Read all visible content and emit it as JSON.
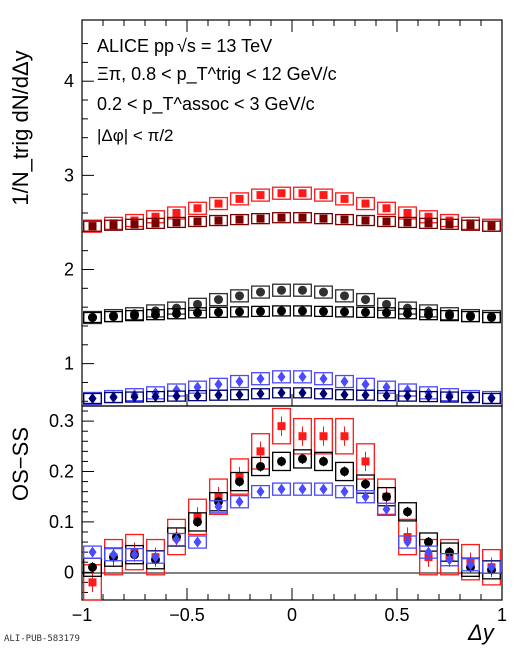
{
  "chart_data": [
    {
      "type": "scatter",
      "panel": "upper",
      "ylabel": "1/N_trig dN/dΔy",
      "ylim": [
        0.55,
        4.65
      ],
      "yticks": [
        1,
        2,
        3,
        4
      ],
      "annotations": {
        "line1_a": "ALICE pp",
        "line1_b": "√s = 13 TeV",
        "line2": "Ξπ, 0.8 < p_T^trig < 12 GeV/c",
        "line3": "0.2 < p_T^assoc < 3 GeV/c",
        "line4": "|Δφ| < π/2"
      },
      "x": [
        -0.95,
        -0.85,
        -0.75,
        -0.65,
        -0.55,
        -0.45,
        -0.35,
        -0.25,
        -0.15,
        -0.05,
        0.05,
        0.15,
        0.25,
        0.35,
        0.45,
        0.55,
        0.65,
        0.75,
        0.85,
        0.95
      ],
      "series": [
        {
          "color": "#ff1a1a",
          "marker": "square",
          "values": [
            2.46,
            2.49,
            2.52,
            2.56,
            2.6,
            2.65,
            2.7,
            2.75,
            2.79,
            2.81,
            2.81,
            2.79,
            2.75,
            2.7,
            2.65,
            2.6,
            2.56,
            2.52,
            2.49,
            2.47
          ]
        },
        {
          "color": "#7a0000",
          "marker": "square",
          "values": [
            2.46,
            2.47,
            2.48,
            2.49,
            2.5,
            2.51,
            2.52,
            2.53,
            2.54,
            2.55,
            2.55,
            2.54,
            2.53,
            2.52,
            2.51,
            2.5,
            2.49,
            2.48,
            2.47,
            2.46
          ]
        },
        {
          "color": "#303030",
          "marker": "circle",
          "values": [
            1.49,
            1.51,
            1.53,
            1.56,
            1.59,
            1.63,
            1.68,
            1.72,
            1.76,
            1.78,
            1.78,
            1.76,
            1.72,
            1.68,
            1.63,
            1.59,
            1.56,
            1.53,
            1.51,
            1.5
          ]
        },
        {
          "color": "#000000",
          "marker": "circle",
          "values": [
            1.49,
            1.5,
            1.51,
            1.52,
            1.53,
            1.54,
            1.545,
            1.55,
            1.555,
            1.56,
            1.56,
            1.555,
            1.55,
            1.545,
            1.54,
            1.53,
            1.52,
            1.51,
            1.5,
            1.49
          ]
        },
        {
          "color": "#4a4aff",
          "marker": "diamond",
          "values": [
            0.63,
            0.65,
            0.67,
            0.69,
            0.72,
            0.75,
            0.78,
            0.81,
            0.84,
            0.86,
            0.86,
            0.84,
            0.81,
            0.78,
            0.75,
            0.72,
            0.69,
            0.67,
            0.65,
            0.64
          ]
        },
        {
          "color": "#000070",
          "marker": "diamond",
          "values": [
            0.63,
            0.64,
            0.645,
            0.65,
            0.655,
            0.66,
            0.665,
            0.67,
            0.68,
            0.69,
            0.69,
            0.68,
            0.67,
            0.665,
            0.66,
            0.655,
            0.65,
            0.645,
            0.64,
            0.63
          ]
        }
      ]
    },
    {
      "type": "scatter",
      "panel": "lower",
      "ylabel": "OS−SS",
      "xlabel": "Δy",
      "xlim": [
        -1,
        1
      ],
      "ylim": [
        -0.055,
        0.33
      ],
      "xticks": [
        "−1",
        "−0.5",
        "0",
        "0.5",
        "1"
      ],
      "yticks": [
        "0",
        "0.1",
        "0.2",
        "0.3"
      ],
      "x": [
        -0.95,
        -0.85,
        -0.75,
        -0.65,
        -0.55,
        -0.45,
        -0.35,
        -0.25,
        -0.15,
        -0.05,
        0.05,
        0.15,
        0.25,
        0.35,
        0.45,
        0.55,
        0.65,
        0.75,
        0.85,
        0.95
      ],
      "series": [
        {
          "color": "#ff1a1a",
          "marker": "square",
          "values": [
            -0.02,
            0.03,
            0.04,
            0.03,
            0.07,
            0.11,
            0.15,
            0.19,
            0.24,
            0.29,
            0.27,
            0.27,
            0.27,
            0.22,
            0.15,
            0.07,
            0.03,
            0.03,
            0.02,
            0.01
          ]
        },
        {
          "color": "#000000",
          "marker": "circle",
          "values": [
            0.01,
            0.03,
            0.035,
            0.025,
            0.07,
            0.1,
            0.14,
            0.18,
            0.21,
            0.22,
            0.225,
            0.22,
            0.2,
            0.175,
            0.15,
            0.12,
            0.06,
            0.04,
            0.01,
            0.005
          ]
        },
        {
          "color": "#4a4aff",
          "marker": "diamond",
          "values": [
            0.04,
            0.035,
            0.035,
            0.03,
            0.065,
            0.06,
            0.13,
            0.14,
            0.16,
            0.165,
            0.165,
            0.165,
            0.16,
            0.15,
            0.125,
            0.06,
            0.04,
            0.025,
            0.015,
            0.01
          ]
        }
      ]
    }
  ],
  "footer_id": "ALI-PUB-583179"
}
